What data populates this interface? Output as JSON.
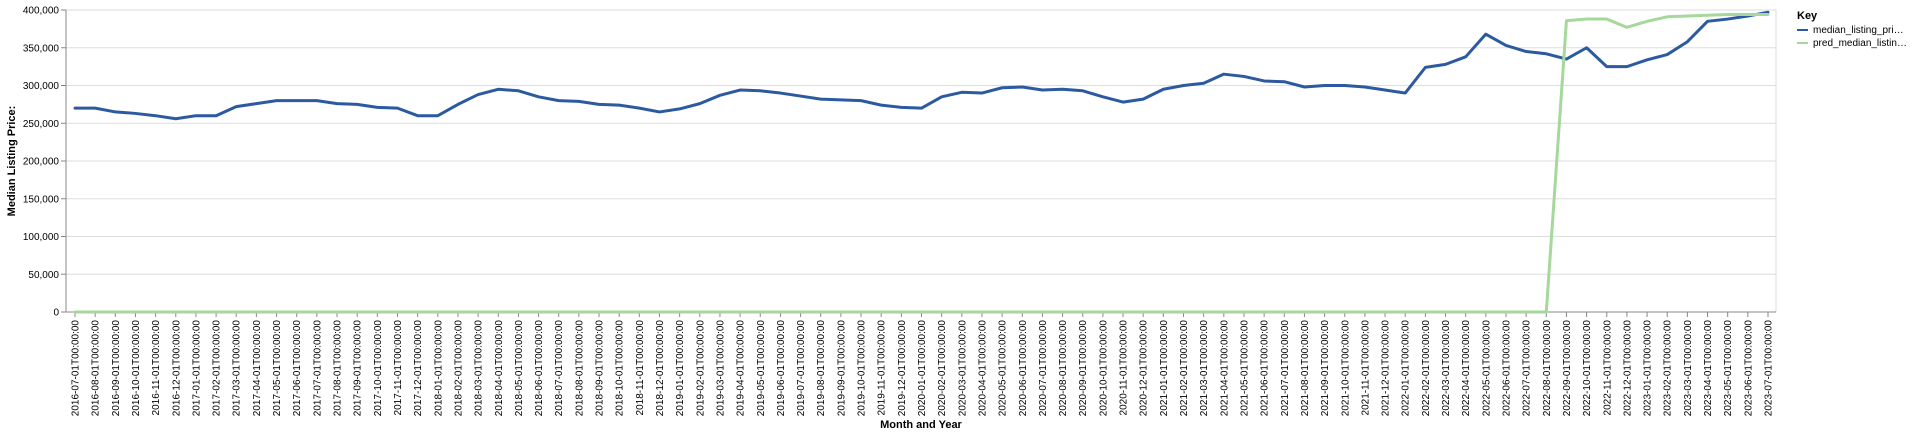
{
  "chart_data": {
    "type": "line",
    "title": "",
    "xlabel": "Month and Year",
    "ylabel": "Median Listing Price:",
    "ylim": [
      0,
      400000
    ],
    "y_ticks": [
      0,
      50000,
      100000,
      150000,
      200000,
      250000,
      300000,
      350000,
      400000
    ],
    "y_tick_labels": [
      "0",
      "50,000",
      "100,000",
      "150,000",
      "200,000",
      "250,000",
      "300,000",
      "350,000",
      "400,000"
    ],
    "grid": true,
    "legend": {
      "title": "Key",
      "position": "right"
    },
    "categories": [
      "2016-07-01T00:00:00",
      "2016-08-01T00:00:00",
      "2016-09-01T00:00:00",
      "2016-10-01T00:00:00",
      "2016-11-01T00:00:00",
      "2016-12-01T00:00:00",
      "2017-01-01T00:00:00",
      "2017-02-01T00:00:00",
      "2017-03-01T00:00:00",
      "2017-04-01T00:00:00",
      "2017-05-01T00:00:00",
      "2017-06-01T00:00:00",
      "2017-07-01T00:00:00",
      "2017-08-01T00:00:00",
      "2017-09-01T00:00:00",
      "2017-10-01T00:00:00",
      "2017-11-01T00:00:00",
      "2017-12-01T00:00:00",
      "2018-01-01T00:00:00",
      "2018-02-01T00:00:00",
      "2018-03-01T00:00:00",
      "2018-04-01T00:00:00",
      "2018-05-01T00:00:00",
      "2018-06-01T00:00:00",
      "2018-07-01T00:00:00",
      "2018-08-01T00:00:00",
      "2018-09-01T00:00:00",
      "2018-10-01T00:00:00",
      "2018-11-01T00:00:00",
      "2018-12-01T00:00:00",
      "2019-01-01T00:00:00",
      "2019-02-01T00:00:00",
      "2019-03-01T00:00:00",
      "2019-04-01T00:00:00",
      "2019-05-01T00:00:00",
      "2019-06-01T00:00:00",
      "2019-07-01T00:00:00",
      "2019-08-01T00:00:00",
      "2019-09-01T00:00:00",
      "2019-10-01T00:00:00",
      "2019-11-01T00:00:00",
      "2019-12-01T00:00:00",
      "2020-01-01T00:00:00",
      "2020-02-01T00:00:00",
      "2020-03-01T00:00:00",
      "2020-04-01T00:00:00",
      "2020-05-01T00:00:00",
      "2020-06-01T00:00:00",
      "2020-07-01T00:00:00",
      "2020-08-01T00:00:00",
      "2020-09-01T00:00:00",
      "2020-10-01T00:00:00",
      "2020-11-01T00:00:00",
      "2020-12-01T00:00:00",
      "2021-01-01T00:00:00",
      "2021-02-01T00:00:00",
      "2021-03-01T00:00:00",
      "2021-04-01T00:00:00",
      "2021-05-01T00:00:00",
      "2021-06-01T00:00:00",
      "2021-07-01T00:00:00",
      "2021-08-01T00:00:00",
      "2021-09-01T00:00:00",
      "2021-10-01T00:00:00",
      "2021-11-01T00:00:00",
      "2021-12-01T00:00:00",
      "2022-01-01T00:00:00",
      "2022-02-01T00:00:00",
      "2022-03-01T00:00:00",
      "2022-04-01T00:00:00",
      "2022-05-01T00:00:00",
      "2022-06-01T00:00:00",
      "2022-07-01T00:00:00",
      "2022-08-01T00:00:00",
      "2022-09-01T00:00:00",
      "2022-10-01T00:00:00",
      "2022-11-01T00:00:00",
      "2022-12-01T00:00:00",
      "2023-01-01T00:00:00",
      "2023-02-01T00:00:00",
      "2023-03-01T00:00:00",
      "2023-04-01T00:00:00",
      "2023-05-01T00:00:00",
      "2023-06-01T00:00:00",
      "2023-07-01T00:00:00"
    ],
    "series": [
      {
        "name": "median_listing_pri…",
        "color": "#2c5aa0",
        "values": [
          270000,
          270000,
          265000,
          263000,
          260000,
          256000,
          260000,
          260000,
          272000,
          276000,
          280000,
          280000,
          280000,
          276000,
          275000,
          271000,
          270000,
          260000,
          260000,
          275000,
          288000,
          295000,
          293000,
          285000,
          280000,
          279000,
          275000,
          274000,
          270000,
          265000,
          269000,
          276000,
          287000,
          294000,
          293000,
          290000,
          286000,
          282000,
          281000,
          280000,
          274000,
          271000,
          270000,
          285000,
          291000,
          290000,
          297000,
          298000,
          294000,
          295000,
          293000,
          285000,
          278000,
          282000,
          295000,
          300000,
          303000,
          315000,
          312000,
          306000,
          305000,
          298000,
          300000,
          300000,
          298000,
          294000,
          290000,
          324000,
          328000,
          338000,
          368000,
          353000,
          345000,
          342000,
          335000,
          350000,
          325000,
          325000,
          334000,
          341000,
          358000,
          385000,
          388000,
          392000,
          397000
        ]
      },
      {
        "name": "pred_median_listin…",
        "color": "#a6d89b",
        "values": [
          0,
          0,
          0,
          0,
          0,
          0,
          0,
          0,
          0,
          0,
          0,
          0,
          0,
          0,
          0,
          0,
          0,
          0,
          0,
          0,
          0,
          0,
          0,
          0,
          0,
          0,
          0,
          0,
          0,
          0,
          0,
          0,
          0,
          0,
          0,
          0,
          0,
          0,
          0,
          0,
          0,
          0,
          0,
          0,
          0,
          0,
          0,
          0,
          0,
          0,
          0,
          0,
          0,
          0,
          0,
          0,
          0,
          0,
          0,
          0,
          0,
          0,
          0,
          0,
          0,
          0,
          0,
          0,
          0,
          0,
          0,
          0,
          0,
          0,
          386000,
          388000,
          388000,
          377000,
          385000,
          391000,
          392000,
          393000,
          394000,
          394000,
          394000
        ]
      }
    ]
  }
}
